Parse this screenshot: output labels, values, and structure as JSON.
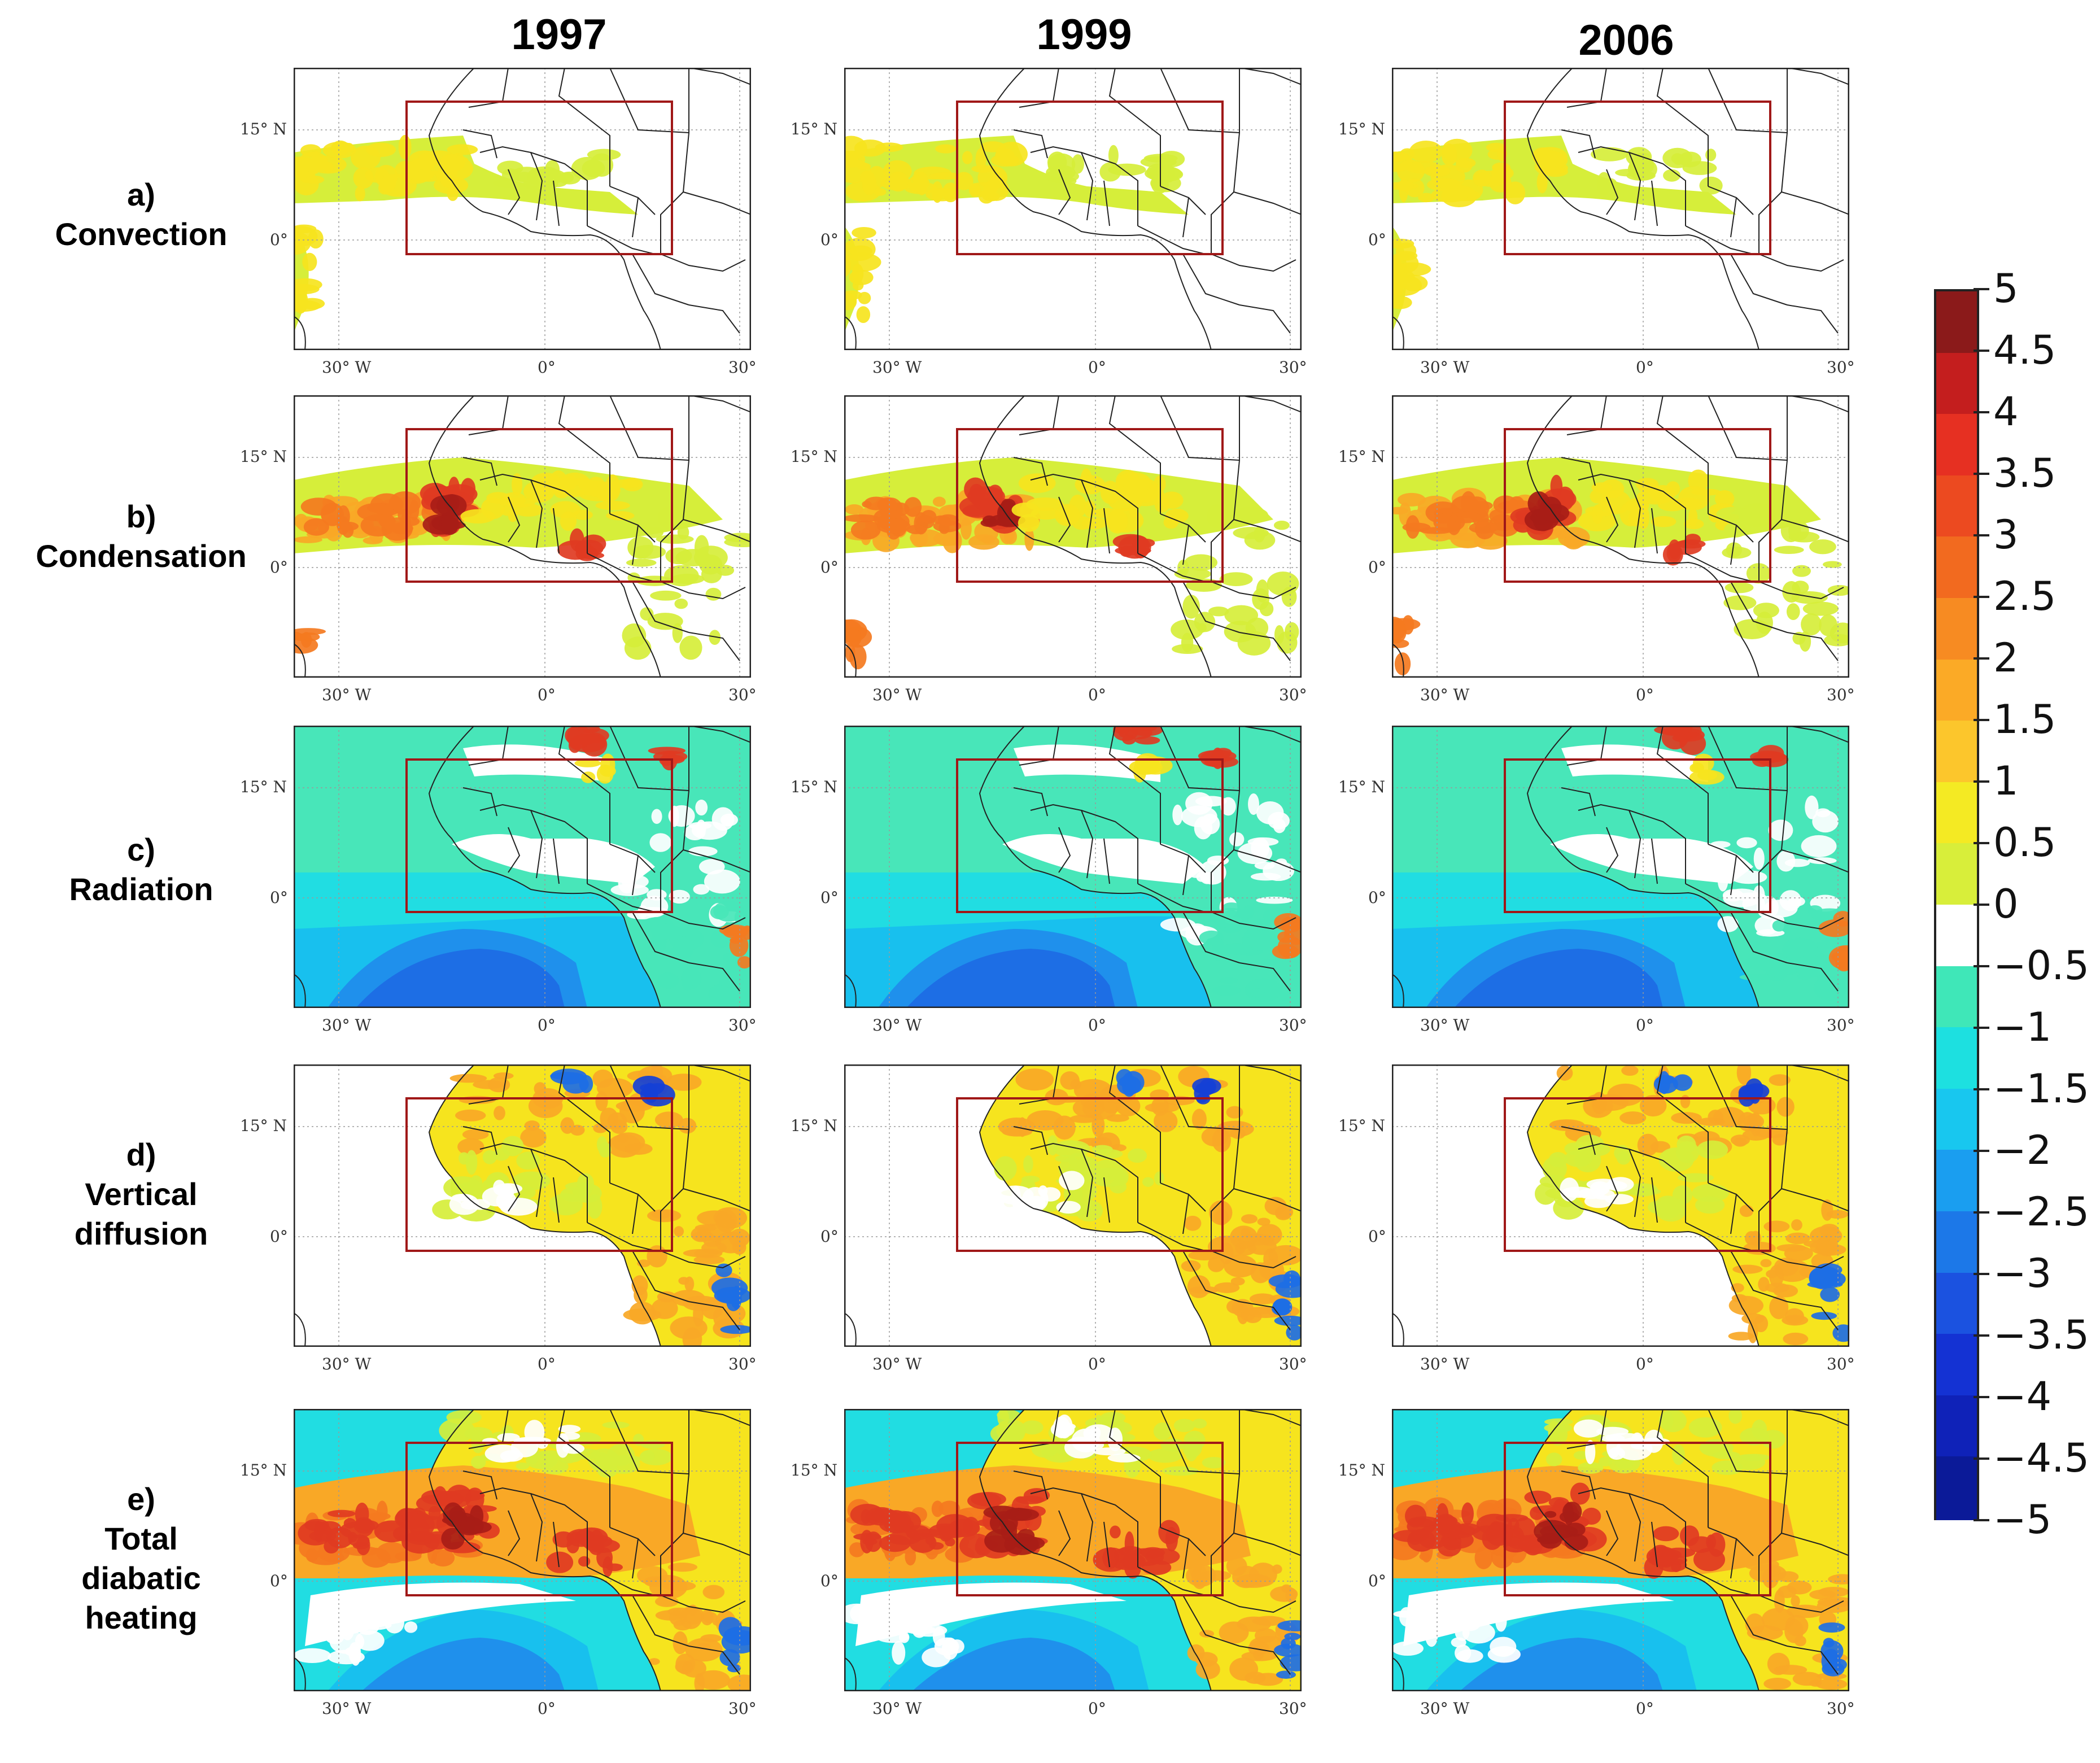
{
  "columns": [
    "1997",
    "1999",
    "2006"
  ],
  "rows": [
    {
      "key": "a",
      "letter": "a)",
      "lines": [
        "Convection"
      ],
      "scheme": "convection"
    },
    {
      "key": "b",
      "letter": "b)",
      "lines": [
        "Condensation"
      ],
      "scheme": "condensation"
    },
    {
      "key": "c",
      "letter": "c)",
      "lines": [
        "Radiation"
      ],
      "scheme": "radiation"
    },
    {
      "key": "d",
      "letter": "d)",
      "lines": [
        "Vertical",
        "diffusion"
      ],
      "scheme": "diffusion"
    },
    {
      "key": "e",
      "letter": "e)",
      "lines": [
        "Total",
        "diabatic",
        "heating"
      ],
      "scheme": "total"
    }
  ],
  "axis_labels": {
    "lat_15": "15° N",
    "lat_0": "0°",
    "lon_30w": "30° W",
    "lon_0": "0°",
    "lon_30e": "30°"
  },
  "colorbar": {
    "labels": [
      "5",
      "4.5",
      "4",
      "3.5",
      "3",
      "2.5",
      "2",
      "1.5",
      "1",
      "0.5",
      "0",
      "−0.5",
      "−1",
      "−1.5",
      "−2",
      "−2.5",
      "−3",
      "−3.5",
      "−4",
      "−4.5",
      "−5"
    ],
    "colors": [
      "#8b1a1a",
      "#c41e1e",
      "#e63022",
      "#ec4a20",
      "#f26a1f",
      "#f78b22",
      "#fbaa26",
      "#fcc62c",
      "#f4ea23",
      "#d8ee3a",
      "#ffffff",
      "#3fe7b8",
      "#1de0e0",
      "#18c7ef",
      "#1a9ef0",
      "#1c78e8",
      "#1b52e0",
      "#1432d3",
      "#0f22b8",
      "#0b1a98"
    ]
  },
  "colors": {
    "box_outline": "#a01818",
    "coast_lines": "#222222",
    "frame": "#222222"
  }
}
